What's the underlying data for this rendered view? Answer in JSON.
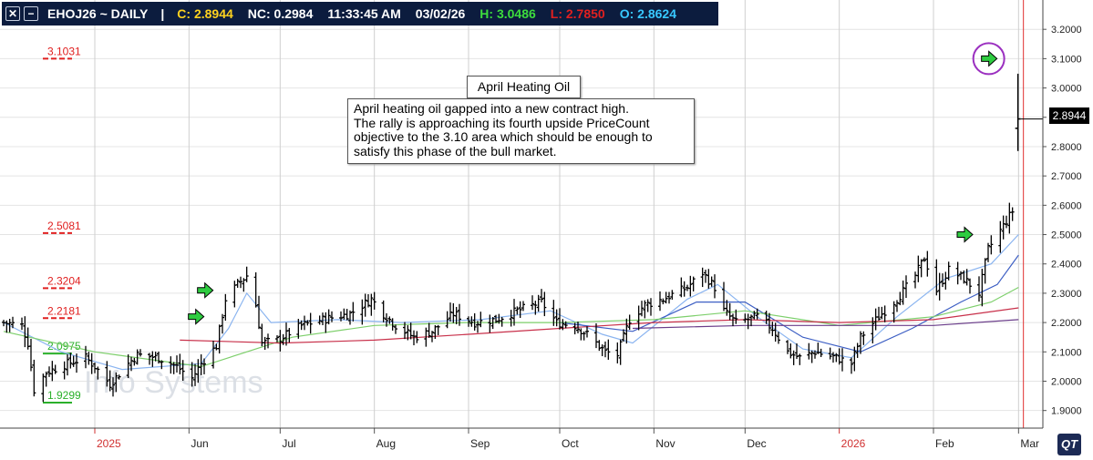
{
  "header": {
    "symbol": "EHOJ26 ~ DAILY",
    "separator": "|",
    "close": "C: 2.8944",
    "net_change": "NC: 0.2984",
    "time": "11:33:45 AM",
    "date": "03/02/26",
    "high": "H: 3.0486",
    "low": "L: 2.7850",
    "open": "O: 2.8624"
  },
  "annotations": {
    "title": "April Heating Oil",
    "note_lines": [
      "April heating oil gapped into a new contract high.",
      "The rally is approaching its fourth upside PriceCount",
      "objective to the 3.10 area which should be enough to",
      "satisfy this phase of the bull market."
    ],
    "watermark": "Info Systems",
    "logo": "QT"
  },
  "last_price_tag": "2.8944",
  "colors": {
    "header_bg": "#0c1c3e",
    "bars": "#000000",
    "ma_fast": "#8ab4f0",
    "ma_mid": "#3d5fc4",
    "ma_green": "#7dcf6b",
    "ma_red": "#c8304a",
    "ma_purple": "#6a3d8a",
    "level_red": "#e02020",
    "level_green": "#2bb02b",
    "arrow": "#2ecc40",
    "circle": "#9b30c0"
  },
  "chart_data": {
    "type": "ohlc",
    "ylim": [
      1.84,
      3.3
    ],
    "y_ticks": [
      1.9,
      2.0,
      2.1,
      2.2,
      2.3,
      2.4,
      2.5,
      2.6,
      2.7,
      2.8,
      2.9,
      3.0,
      3.1,
      3.2
    ],
    "y_tick_labels": [
      "1.9000",
      "2.0000",
      "2.1000",
      "2.2000",
      "2.3000",
      "2.4000",
      "2.5000",
      "2.6000",
      "2.7000",
      "2.8000",
      "2.9000",
      "3.0000",
      "3.1000",
      "3.2000"
    ],
    "x_months": [
      {
        "label": "2025",
        "date": "2025-05-01",
        "year": true
      },
      {
        "label": "Jun",
        "date": "2025-06-01"
      },
      {
        "label": "Jul",
        "date": "2025-07-01"
      },
      {
        "label": "Aug",
        "date": "2025-08-01"
      },
      {
        "label": "Sep",
        "date": "2025-09-01"
      },
      {
        "label": "Oct",
        "date": "2025-10-01"
      },
      {
        "label": "Nov",
        "date": "2025-11-01"
      },
      {
        "label": "Dec",
        "date": "2025-12-01"
      },
      {
        "label": "2026",
        "date": "2026-01-01",
        "year": true
      },
      {
        "label": "Feb",
        "date": "2026-02-01"
      },
      {
        "label": "Mar",
        "date": "2026-03-01"
      }
    ],
    "x_range": [
      "2025-04-01",
      "2026-03-03"
    ],
    "current_date": "2026-03-02",
    "price_path": [
      [
        "2025-04-01",
        2.2
      ],
      [
        "2025-04-07",
        2.19
      ],
      [
        "2025-04-09",
        2.13
      ],
      [
        "2025-04-11",
        1.97
      ],
      [
        "2025-04-15",
        2.03
      ],
      [
        "2025-04-22",
        2.06
      ],
      [
        "2025-04-28",
        2.08
      ],
      [
        "2025-05-01",
        2.05
      ],
      [
        "2025-05-06",
        1.99
      ],
      [
        "2025-05-12",
        2.06
      ],
      [
        "2025-05-15",
        2.09
      ],
      [
        "2025-05-22",
        2.08
      ],
      [
        "2025-05-28",
        2.05
      ],
      [
        "2025-06-02",
        2.01
      ],
      [
        "2025-06-05",
        2.06
      ],
      [
        "2025-06-10",
        2.12
      ],
      [
        "2025-06-13",
        2.28
      ],
      [
        "2025-06-17",
        2.33
      ],
      [
        "2025-06-20",
        2.36
      ],
      [
        "2025-06-23",
        2.26
      ],
      [
        "2025-06-25",
        2.13
      ],
      [
        "2025-06-30",
        2.14
      ],
      [
        "2025-07-08",
        2.19
      ],
      [
        "2025-07-15",
        2.21
      ],
      [
        "2025-07-24",
        2.23
      ],
      [
        "2025-07-31",
        2.28
      ],
      [
        "2025-08-04",
        2.23
      ],
      [
        "2025-08-08",
        2.19
      ],
      [
        "2025-08-14",
        2.15
      ],
      [
        "2025-08-20",
        2.17
      ],
      [
        "2025-08-27",
        2.23
      ],
      [
        "2025-09-03",
        2.2
      ],
      [
        "2025-09-10",
        2.21
      ],
      [
        "2025-09-17",
        2.24
      ],
      [
        "2025-09-25",
        2.27
      ],
      [
        "2025-09-30",
        2.2
      ],
      [
        "2025-10-06",
        2.19
      ],
      [
        "2025-10-10",
        2.16
      ],
      [
        "2025-10-16",
        2.1
      ],
      [
        "2025-10-20",
        2.09
      ],
      [
        "2025-10-24",
        2.21
      ],
      [
        "2025-10-29",
        2.26
      ],
      [
        "2025-11-04",
        2.28
      ],
      [
        "2025-11-12",
        2.32
      ],
      [
        "2025-11-17",
        2.37
      ],
      [
        "2025-11-21",
        2.32
      ],
      [
        "2025-11-24",
        2.24
      ],
      [
        "2025-11-28",
        2.2
      ],
      [
        "2025-12-05",
        2.22
      ],
      [
        "2025-12-10",
        2.18
      ],
      [
        "2025-12-15",
        2.1
      ],
      [
        "2025-12-19",
        2.08
      ],
      [
        "2025-12-24",
        2.1
      ],
      [
        "2025-12-31",
        2.08
      ],
      [
        "2026-01-05",
        2.06
      ],
      [
        "2026-01-08",
        2.15
      ],
      [
        "2026-01-14",
        2.22
      ],
      [
        "2026-01-20",
        2.28
      ],
      [
        "2026-01-26",
        2.36
      ],
      [
        "2026-01-29",
        2.42
      ],
      [
        "2026-02-02",
        2.31
      ],
      [
        "2026-02-06",
        2.38
      ],
      [
        "2026-02-11",
        2.35
      ],
      [
        "2026-02-16",
        2.3
      ],
      [
        "2026-02-19",
        2.45
      ],
      [
        "2026-02-24",
        2.53
      ],
      [
        "2026-02-27",
        2.58
      ],
      [
        "2026-03-02",
        2.92
      ]
    ],
    "last_bar": {
      "date": "2026-03-02",
      "open": 2.8624,
      "high": 3.0486,
      "low": 2.785,
      "close": 2.8944
    },
    "moving_averages": [
      {
        "key": "fast",
        "color": "#8ab4f0",
        "points": [
          [
            "2025-04-01",
            2.2
          ],
          [
            "2025-04-20",
            2.1
          ],
          [
            "2025-05-10",
            2.04
          ],
          [
            "2025-06-05",
            2.06
          ],
          [
            "2025-06-14",
            2.18
          ],
          [
            "2025-06-20",
            2.3
          ],
          [
            "2025-06-28",
            2.2
          ],
          [
            "2025-07-20",
            2.21
          ],
          [
            "2025-08-10",
            2.2
          ],
          [
            "2025-09-05",
            2.21
          ],
          [
            "2025-09-28",
            2.24
          ],
          [
            "2025-10-15",
            2.16
          ],
          [
            "2025-10-25",
            2.13
          ],
          [
            "2025-11-12",
            2.28
          ],
          [
            "2025-11-22",
            2.33
          ],
          [
            "2025-12-05",
            2.22
          ],
          [
            "2025-12-20",
            2.11
          ],
          [
            "2026-01-05",
            2.08
          ],
          [
            "2026-01-20",
            2.22
          ],
          [
            "2026-02-05",
            2.35
          ],
          [
            "2026-02-20",
            2.4
          ],
          [
            "2026-03-01",
            2.5
          ]
        ]
      },
      {
        "key": "mid",
        "color": "#3d5fc4",
        "points": [
          [
            "2025-10-01",
            2.2
          ],
          [
            "2025-10-25",
            2.17
          ],
          [
            "2025-11-15",
            2.27
          ],
          [
            "2025-12-01",
            2.27
          ],
          [
            "2025-12-20",
            2.15
          ],
          [
            "2026-01-08",
            2.1
          ],
          [
            "2026-01-25",
            2.18
          ],
          [
            "2026-02-10",
            2.27
          ],
          [
            "2026-02-22",
            2.33
          ],
          [
            "2026-03-01",
            2.43
          ]
        ]
      },
      {
        "key": "green",
        "color": "#7dcf6b",
        "points": [
          [
            "2025-04-01",
            2.17
          ],
          [
            "2025-05-01",
            2.1
          ],
          [
            "2025-06-05",
            2.05
          ],
          [
            "2025-07-05",
            2.15
          ],
          [
            "2025-08-01",
            2.19
          ],
          [
            "2025-09-01",
            2.2
          ],
          [
            "2025-10-01",
            2.2
          ],
          [
            "2025-11-01",
            2.21
          ],
          [
            "2025-12-01",
            2.24
          ],
          [
            "2026-01-01",
            2.19
          ],
          [
            "2026-02-01",
            2.22
          ],
          [
            "2026-02-20",
            2.27
          ],
          [
            "2026-03-01",
            2.32
          ]
        ]
      },
      {
        "key": "red",
        "color": "#c8304a",
        "points": [
          [
            "2025-05-29",
            2.14
          ],
          [
            "2025-07-01",
            2.13
          ],
          [
            "2025-08-01",
            2.14
          ],
          [
            "2025-09-01",
            2.16
          ],
          [
            "2025-10-01",
            2.18
          ],
          [
            "2025-11-01",
            2.2
          ],
          [
            "2025-12-01",
            2.21
          ],
          [
            "2026-01-01",
            2.2
          ],
          [
            "2026-02-01",
            2.21
          ],
          [
            "2026-03-01",
            2.25
          ]
        ]
      },
      {
        "key": "purple",
        "color": "#6a3d8a",
        "points": [
          [
            "2025-10-25",
            2.18
          ],
          [
            "2025-12-01",
            2.19
          ],
          [
            "2026-01-01",
            2.19
          ],
          [
            "2026-02-01",
            2.19
          ],
          [
            "2026-03-01",
            2.21
          ]
        ]
      }
    ],
    "levels": [
      {
        "label": "3.1031",
        "value": 3.1031,
        "color": "#e02020"
      },
      {
        "label": "2.5081",
        "value": 2.5081,
        "color": "#e02020"
      },
      {
        "label": "2.3204",
        "value": 2.3204,
        "color": "#e02020"
      },
      {
        "label": "2.2181",
        "value": 2.2181,
        "color": "#e02020"
      },
      {
        "label": "2.0975",
        "value": 2.0975,
        "color": "#2bb02b"
      },
      {
        "label": "1.9299",
        "value": 1.9299,
        "color": "#2bb02b"
      }
    ],
    "signal_arrows": [
      {
        "date": "2025-06-08",
        "value": 2.31
      },
      {
        "date": "2025-06-05",
        "value": 2.22
      },
      {
        "date": "2026-02-13",
        "value": 2.5
      },
      {
        "date": "2026-02-21",
        "value": 3.1,
        "circled": true
      }
    ]
  }
}
